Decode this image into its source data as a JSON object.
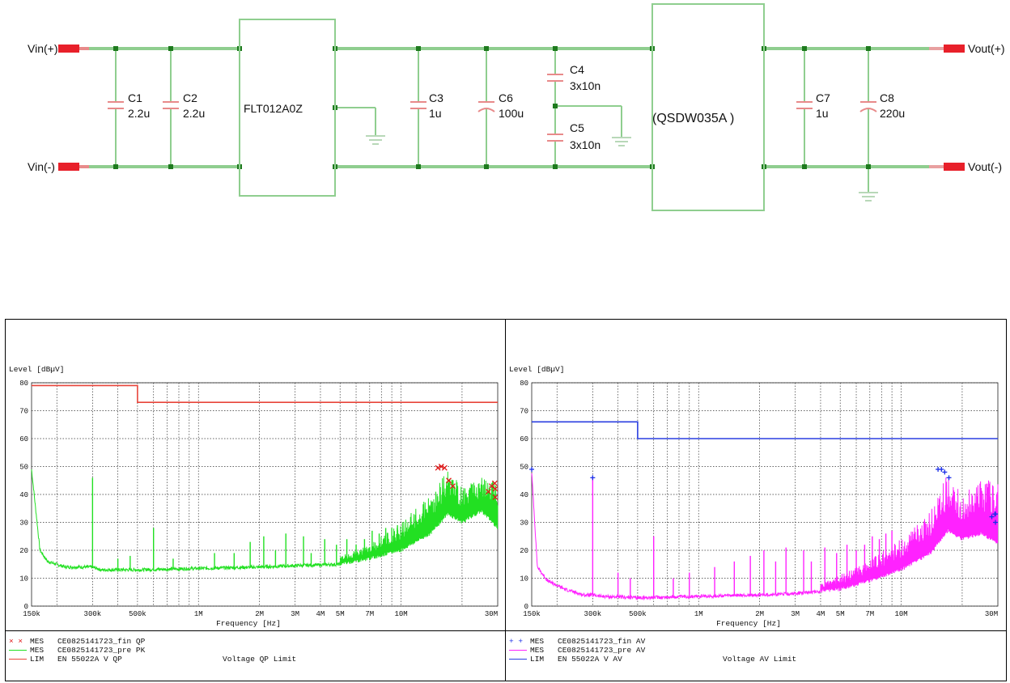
{
  "schematic": {
    "terminals": {
      "vin_pos": "Vin(+)",
      "vin_neg": "Vin(-)",
      "vout_pos": "Vout(+)",
      "vout_neg": "Vout(-)"
    },
    "components": {
      "c1": {
        "name": "C1",
        "value": "2.2u"
      },
      "c2": {
        "name": "C2",
        "value": "2.2u"
      },
      "filter": "FLT012A0Z",
      "c3": {
        "name": "C3",
        "value": "1u"
      },
      "c6": {
        "name": "C6",
        "value": "100u"
      },
      "c4": {
        "name": "C4",
        "value": "3x10n"
      },
      "c5": {
        "name": "C5",
        "value": "3x10n"
      },
      "converter": "(QSDW035A )",
      "c7": {
        "name": "C7",
        "value": "1u"
      },
      "c8": {
        "name": "C8",
        "value": "220u"
      }
    },
    "colors": {
      "wire": "#8fce8f",
      "terminal": "#e8202a",
      "node": "#1e7a1e",
      "box": "#8fce8f"
    }
  },
  "chart_data": [
    {
      "type": "line",
      "ylabel": "Level [dBµV]",
      "xlabel": "Frequency [Hz]",
      "x_scale": "log",
      "xlim": [
        150000,
        30000000
      ],
      "ylim": [
        0,
        80
      ],
      "yticks": [
        0,
        10,
        20,
        30,
        40,
        50,
        60,
        70,
        80
      ],
      "xticks": [
        {
          "v": 150000,
          "label": "150k"
        },
        {
          "v": 300000,
          "label": "300k"
        },
        {
          "v": 500000,
          "label": "500k"
        },
        {
          "v": 1000000,
          "label": "1M"
        },
        {
          "v": 2000000,
          "label": "2M"
        },
        {
          "v": 3000000,
          "label": "3M"
        },
        {
          "v": 4000000,
          "label": "4M"
        },
        {
          "v": 5000000,
          "label": "5M"
        },
        {
          "v": 7000000,
          "label": "7M"
        },
        {
          "v": 10000000,
          "label": "10M"
        },
        {
          "v": 30000000,
          "label": "30M"
        }
      ],
      "grid": true,
      "limit": {
        "color": "#e8443a",
        "points": [
          [
            150000,
            79
          ],
          [
            500000,
            79
          ],
          [
            500000,
            73
          ],
          [
            30000000,
            73
          ]
        ]
      },
      "trace": {
        "color": "#22e022",
        "baseline": [
          [
            150000,
            49
          ],
          [
            165000,
            20
          ],
          [
            180000,
            16
          ],
          [
            220000,
            14
          ],
          [
            270000,
            14
          ],
          [
            300000,
            14
          ],
          [
            330000,
            13
          ],
          [
            500000,
            13
          ],
          [
            1000000,
            13.5
          ],
          [
            2000000,
            14
          ],
          [
            3000000,
            14.5
          ],
          [
            5000000,
            15
          ],
          [
            7000000,
            17
          ],
          [
            10000000,
            20
          ],
          [
            14000000,
            26
          ],
          [
            17000000,
            33
          ],
          [
            20000000,
            30
          ],
          [
            25000000,
            34
          ],
          [
            30000000,
            28
          ]
        ],
        "envelope": [
          [
            5000000,
            18
          ],
          [
            7000000,
            22
          ],
          [
            10000000,
            30
          ],
          [
            14000000,
            40
          ],
          [
            17000000,
            49
          ],
          [
            20000000,
            43
          ],
          [
            25000000,
            46
          ],
          [
            30000000,
            45
          ]
        ],
        "spikes": [
          [
            300000,
            46
          ],
          [
            600000,
            28
          ],
          [
            400000,
            17
          ],
          [
            460000,
            18
          ],
          [
            750000,
            17
          ],
          [
            1200000,
            19
          ],
          [
            1500000,
            19
          ],
          [
            1800000,
            23
          ],
          [
            2100000,
            25
          ],
          [
            2400000,
            20
          ],
          [
            2700000,
            26
          ],
          [
            3300000,
            25
          ],
          [
            3600000,
            19
          ],
          [
            4200000,
            24
          ],
          [
            4800000,
            22
          ],
          [
            5400000,
            24
          ],
          [
            6000000,
            22
          ],
          [
            6600000,
            24
          ],
          [
            7200000,
            27
          ],
          [
            7800000,
            26
          ],
          [
            8400000,
            28
          ],
          [
            9000000,
            28
          ],
          [
            9600000,
            29
          ]
        ]
      },
      "markers": {
        "symbol": "x",
        "color": "#e01818",
        "points": [
          [
            15200000,
            49.5
          ],
          [
            15800000,
            50
          ],
          [
            16400000,
            49.5
          ],
          [
            17200000,
            45
          ],
          [
            18000000,
            43
          ],
          [
            27000000,
            41
          ],
          [
            28000000,
            43
          ],
          [
            29000000,
            44
          ],
          [
            29500000,
            42
          ],
          [
            30000000,
            39
          ]
        ]
      },
      "legend": [
        {
          "symbol": "× ×",
          "color": "#e01818",
          "tag": "MES",
          "text": "CE0825141723_fin QP",
          "note": ""
        },
        {
          "symbol": "",
          "color": "#22e022",
          "tag": "MES",
          "text": "CE0825141723_pre PK",
          "note": ""
        },
        {
          "symbol": "",
          "color": "#e8443a",
          "tag": "LIM",
          "text": "EN 55022A V QP",
          "note": "Voltage QP Limit"
        }
      ]
    },
    {
      "type": "line",
      "ylabel": "Level [dBµV]",
      "xlabel": "Frequency [Hz]",
      "x_scale": "log",
      "xlim": [
        150000,
        30000000
      ],
      "ylim": [
        0,
        80
      ],
      "yticks": [
        0,
        10,
        20,
        30,
        40,
        50,
        60,
        70,
        80
      ],
      "xticks": [
        {
          "v": 150000,
          "label": "150k"
        },
        {
          "v": 300000,
          "label": "300k"
        },
        {
          "v": 500000,
          "label": "500k"
        },
        {
          "v": 1000000,
          "label": "1M"
        },
        {
          "v": 2000000,
          "label": "2M"
        },
        {
          "v": 3000000,
          "label": "3M"
        },
        {
          "v": 4000000,
          "label": "4M"
        },
        {
          "v": 5000000,
          "label": "5M"
        },
        {
          "v": 7000000,
          "label": "7M"
        },
        {
          "v": 10000000,
          "label": "10M"
        },
        {
          "v": 30000000,
          "label": "30M"
        }
      ],
      "grid": true,
      "limit": {
        "color": "#2a3ee0",
        "points": [
          [
            150000,
            66
          ],
          [
            500000,
            66
          ],
          [
            500000,
            60
          ],
          [
            30000000,
            60
          ]
        ]
      },
      "trace": {
        "color": "#ff22ff",
        "baseline": [
          [
            150000,
            48
          ],
          [
            160000,
            14
          ],
          [
            180000,
            9
          ],
          [
            220000,
            6
          ],
          [
            270000,
            4
          ],
          [
            300000,
            4
          ],
          [
            330000,
            3.5
          ],
          [
            500000,
            3
          ],
          [
            1000000,
            3.5
          ],
          [
            2000000,
            4
          ],
          [
            3000000,
            4.5
          ],
          [
            5000000,
            6
          ],
          [
            7000000,
            9
          ],
          [
            10000000,
            13
          ],
          [
            14000000,
            19
          ],
          [
            17000000,
            27
          ],
          [
            20000000,
            24
          ],
          [
            25000000,
            26
          ],
          [
            30000000,
            22
          ]
        ],
        "envelope": [
          [
            4000000,
            8
          ],
          [
            6000000,
            14
          ],
          [
            10000000,
            24
          ],
          [
            14000000,
            34
          ],
          [
            17000000,
            48
          ],
          [
            20000000,
            40
          ],
          [
            25000000,
            45
          ],
          [
            30000000,
            46
          ]
        ],
        "spikes": [
          [
            300000,
            46
          ],
          [
            400000,
            12
          ],
          [
            460000,
            10
          ],
          [
            600000,
            25
          ],
          [
            750000,
            10
          ],
          [
            900000,
            12
          ],
          [
            1200000,
            14
          ],
          [
            1500000,
            16
          ],
          [
            1800000,
            18
          ],
          [
            2100000,
            20
          ],
          [
            2400000,
            16
          ],
          [
            2700000,
            21
          ],
          [
            3300000,
            20
          ],
          [
            3600000,
            16
          ],
          [
            4200000,
            21
          ],
          [
            4800000,
            19
          ],
          [
            5400000,
            22
          ],
          [
            6000000,
            20
          ],
          [
            6600000,
            22
          ],
          [
            7200000,
            25
          ],
          [
            7800000,
            24
          ],
          [
            8400000,
            26
          ],
          [
            9000000,
            27
          ]
        ]
      },
      "markers": {
        "symbol": "+",
        "color": "#1a2ee8",
        "points": [
          [
            150000,
            49
          ],
          [
            300000,
            46
          ],
          [
            15200000,
            49
          ],
          [
            15800000,
            49
          ],
          [
            16400000,
            48
          ],
          [
            17200000,
            46
          ],
          [
            28000000,
            32
          ],
          [
            29000000,
            33
          ],
          [
            29500000,
            30
          ],
          [
            30000000,
            33
          ]
        ]
      },
      "legend": [
        {
          "symbol": "+ +",
          "color": "#1a2ee8",
          "tag": "MES",
          "text": "CE0825141723_fin AV",
          "note": ""
        },
        {
          "symbol": "",
          "color": "#ff22ff",
          "tag": "MES",
          "text": "CE0825141723_pre AV",
          "note": ""
        },
        {
          "symbol": "",
          "color": "#2a3ee0",
          "tag": "LIM",
          "text": "EN 55022A V AV",
          "note": "Voltage AV Limit"
        }
      ]
    }
  ]
}
